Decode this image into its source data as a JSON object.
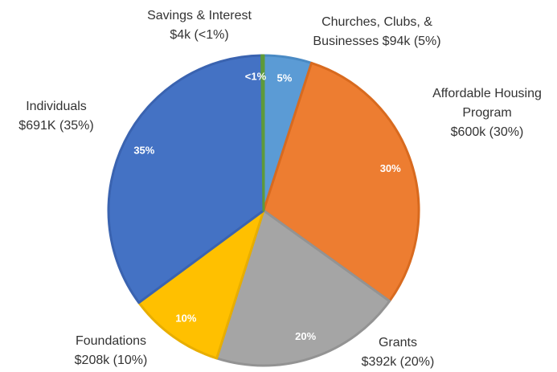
{
  "chart_data": {
    "type": "pie",
    "categories": [
      [
        "Churches, Clubs, &",
        "Businesses $94k (5%)"
      ],
      [
        "Affordable Housing",
        "Program",
        "$600k (30%)"
      ],
      [
        "Grants",
        "$392k (20%)"
      ],
      [
        "Foundations",
        "$208k (10%)"
      ],
      [
        "Individuals",
        "$691K (35%)"
      ],
      [
        "Savings & Interest",
        "$4k (<1%)"
      ]
    ],
    "values": [
      5,
      30,
      20,
      10,
      35,
      0.2
    ],
    "value_labels": [
      "5%",
      "30%",
      "20%",
      "10%",
      "35%",
      "<1%"
    ],
    "colors": [
      "#5b9bd5",
      "#ed7d31",
      "#a5a5a5",
      "#ffc000",
      "#4472c4",
      "#70ad47"
    ],
    "borders": [
      "#4a8ac4",
      "#d86a1f",
      "#939393",
      "#e8ae00",
      "#3a63b0",
      "#5e9a3a"
    ]
  }
}
